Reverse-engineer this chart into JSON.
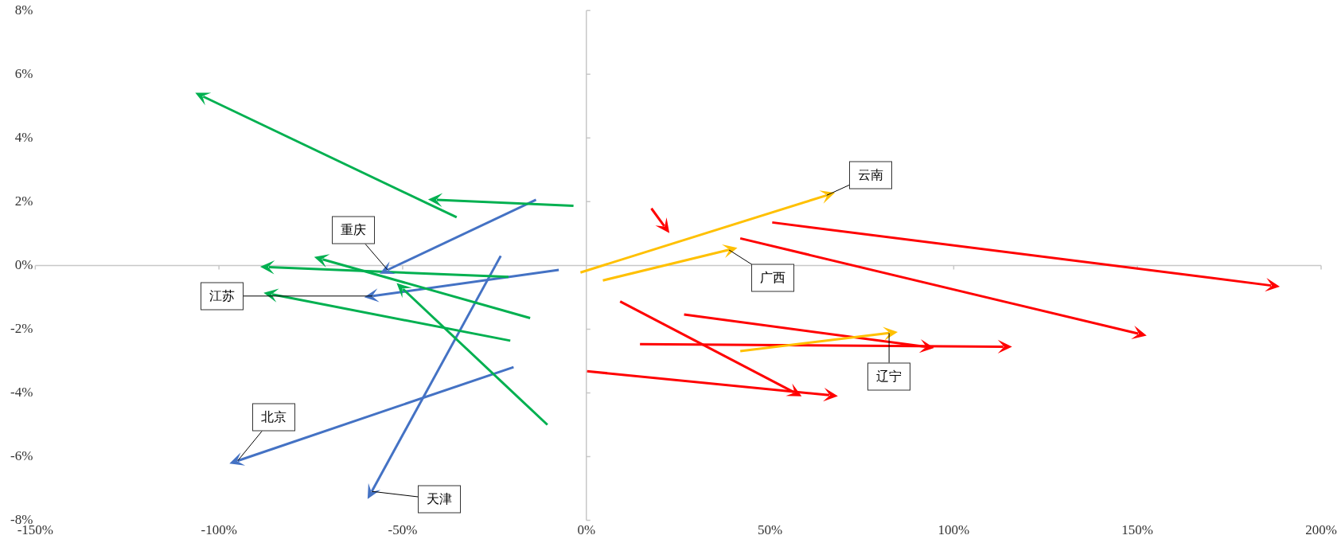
{
  "chart_data": {
    "type": "line",
    "legend": false,
    "xlim": [
      -150,
      200
    ],
    "xticks": [
      {
        "value": -150,
        "label": "-150%"
      },
      {
        "value": -100,
        "label": "-100%"
      },
      {
        "value": -50,
        "label": "-50%"
      },
      {
        "value": 0,
        "label": "0%"
      },
      {
        "value": 50,
        "label": "50%"
      },
      {
        "value": 100,
        "label": "100%"
      },
      {
        "value": 150,
        "label": "150%"
      },
      {
        "value": 200,
        "label": "200%"
      }
    ],
    "ylim": [
      -8,
      8
    ],
    "yticks": [
      {
        "value": -8,
        "label": "-8%"
      },
      {
        "value": -6,
        "label": "-6%"
      },
      {
        "value": -4,
        "label": "-4%"
      },
      {
        "value": -2,
        "label": "-2%"
      },
      {
        "value": 0,
        "label": "0%"
      },
      {
        "value": 2,
        "label": "2%"
      },
      {
        "value": 4,
        "label": "4%"
      },
      {
        "value": 6,
        "label": "6%"
      },
      {
        "value": 8,
        "label": "8%"
      }
    ],
    "series": [
      {
        "color": "#00b050",
        "x": [
          -35.3,
          -104.3
        ],
        "values": [
          1.51,
          5.3
        ]
      },
      {
        "color": "#00b050",
        "x": [
          -3.5,
          -40.7
        ],
        "values": [
          1.87,
          2.06
        ]
      },
      {
        "color": "#00b050",
        "x": [
          -21.2,
          -86.4
        ],
        "values": [
          -0.36,
          -0.05
        ]
      },
      {
        "color": "#00b050",
        "x": [
          -15.3,
          -71.8
        ],
        "values": [
          -1.65,
          0.19
        ]
      },
      {
        "color": "#00b050",
        "x": [
          -20.7,
          -85.5
        ],
        "values": [
          -2.36,
          -0.91
        ]
      },
      {
        "color": "#00b050",
        "x": [
          -10.6,
          -49.9
        ],
        "values": [
          -5.0,
          -0.74
        ]
      },
      {
        "color": "#4472c4",
        "x": [
          -13.7,
          -54.1
        ],
        "values": [
          2.06,
          -0.14
        ]
      },
      {
        "color": "#4472c4",
        "x": [
          -7.5,
          -58.1
        ],
        "values": [
          -0.14,
          -0.96
        ]
      },
      {
        "color": "#4472c4",
        "x": [
          -19.8,
          -94.9
        ],
        "values": [
          -3.19,
          -6.13
        ]
      },
      {
        "color": "#4472c4",
        "x": [
          -23.3,
          -58.4
        ],
        "values": [
          0.3,
          -7.09
        ]
      },
      {
        "color": "#ffc000",
        "x": [
          -1.6,
          65.4
        ],
        "values": [
          -0.22,
          2.2
        ]
      },
      {
        "color": "#ffc000",
        "x": [
          4.5,
          38.8
        ],
        "values": [
          -0.47,
          0.49
        ]
      },
      {
        "color": "#ffc000",
        "x": [
          41.9,
          82.4
        ],
        "values": [
          -2.69,
          -2.12
        ]
      },
      {
        "color": "#ff0000",
        "x": [
          17.7,
          21.2
        ],
        "values": [
          1.79,
          1.24
        ]
      },
      {
        "color": "#ff0000",
        "x": [
          50.6,
          186.4
        ],
        "values": [
          1.35,
          -0.63
        ]
      },
      {
        "color": "#ff0000",
        "x": [
          41.9,
          150.2
        ],
        "values": [
          0.85,
          -2.14
        ]
      },
      {
        "color": "#ff0000",
        "x": [
          26.6,
          92.3
        ],
        "values": [
          -1.54,
          -2.55
        ]
      },
      {
        "color": "#ff0000",
        "x": [
          14.6,
          113.5
        ],
        "values": [
          -2.47,
          -2.55
        ]
      },
      {
        "color": "#ff0000",
        "x": [
          9.2,
          56.5
        ],
        "values": [
          -1.13,
          -3.98
        ]
      },
      {
        "color": "#ff0000",
        "x": [
          0.2,
          66.1
        ],
        "values": [
          -3.32,
          -4.07
        ]
      }
    ],
    "annotations": [
      {
        "text": "云南",
        "x": 65.4,
        "y": 2.2
      },
      {
        "text": "广西",
        "x": 38.8,
        "y": 0.49
      },
      {
        "text": "辽宁",
        "x": 82.4,
        "y": -2.12
      },
      {
        "text": "重庆",
        "x": -54.1,
        "y": -0.14
      },
      {
        "text": "江苏",
        "x": -58.1,
        "y": -0.96
      },
      {
        "text": "北京",
        "x": -94.9,
        "y": -6.13
      },
      {
        "text": "天津",
        "x": -58.4,
        "y": -7.09
      }
    ]
  }
}
